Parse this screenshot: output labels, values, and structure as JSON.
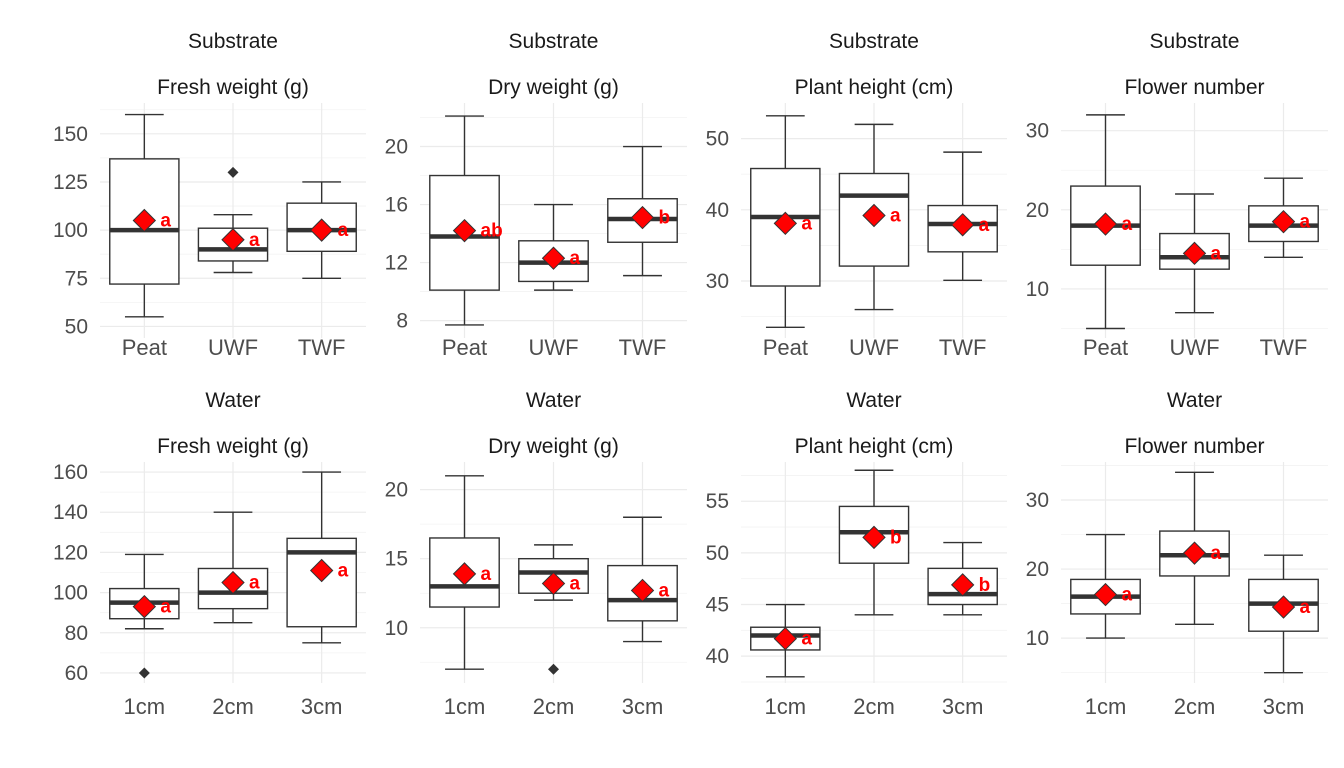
{
  "chart_data": [
    {
      "type": "box",
      "group": "Substrate",
      "title": "Fresh weight (g)",
      "categories": [
        "Peat",
        "UWF",
        "TWF"
      ],
      "ylim": [
        44,
        166
      ],
      "yticks": [
        "50",
        "75",
        "100",
        "125",
        "150"
      ],
      "boxes": [
        {
          "min": 55,
          "q1": 72,
          "median": 100,
          "q3": 137,
          "max": 160,
          "mean": 105,
          "outliers": [],
          "letter": "a"
        },
        {
          "min": 78,
          "q1": 84,
          "median": 90,
          "q3": 101,
          "max": 108,
          "mean": 95,
          "outliers": [
            130
          ],
          "letter": "a"
        },
        {
          "min": 75,
          "q1": 89,
          "median": 100,
          "q3": 114,
          "max": 125,
          "mean": 100,
          "outliers": [],
          "letter": "a"
        }
      ]
    },
    {
      "type": "box",
      "group": "Substrate",
      "title": "Dry weight (g)",
      "categories": [
        "Peat",
        "UWF",
        "TWF"
      ],
      "ylim": [
        6.8,
        23
      ],
      "yticks": [
        "8",
        "12",
        "16",
        "20"
      ],
      "boxes": [
        {
          "min": 7.7,
          "q1": 10.1,
          "median": 13.8,
          "q3": 18,
          "max": 22.1,
          "mean": 14.2,
          "outliers": [],
          "letter": "ab"
        },
        {
          "min": 10.1,
          "q1": 10.7,
          "median": 12,
          "q3": 13.5,
          "max": 16,
          "mean": 12.3,
          "outliers": [],
          "letter": "a"
        },
        {
          "min": 11.1,
          "q1": 13.4,
          "median": 15,
          "q3": 16.4,
          "max": 20,
          "mean": 15.1,
          "outliers": [],
          "letter": "b"
        }
      ]
    },
    {
      "type": "box",
      "group": "Substrate",
      "title": "Plant height (cm)",
      "categories": [
        "Peat",
        "UWF",
        "TWF"
      ],
      "ylim": [
        22,
        55
      ],
      "yticks": [
        "30",
        "40",
        "50"
      ],
      "boxes": [
        {
          "min": 23.5,
          "q1": 29.3,
          "median": 39,
          "q3": 45.8,
          "max": 53.2,
          "mean": 38.1,
          "outliers": [],
          "letter": "a"
        },
        {
          "min": 26,
          "q1": 32.1,
          "median": 42,
          "q3": 45.1,
          "max": 52,
          "mean": 39.2,
          "outliers": [],
          "letter": "a"
        },
        {
          "min": 30.1,
          "q1": 34.1,
          "median": 38,
          "q3": 40.6,
          "max": 48.1,
          "mean": 37.9,
          "outliers": [],
          "letter": "a"
        }
      ]
    },
    {
      "type": "box",
      "group": "Substrate",
      "title": "Flower number",
      "categories": [
        "Peat",
        "UWF",
        "TWF"
      ],
      "ylim": [
        3.8,
        33.5
      ],
      "yticks": [
        "10",
        "20",
        "30"
      ],
      "boxes": [
        {
          "min": 5,
          "q1": 13,
          "median": 18,
          "q3": 23,
          "max": 32,
          "mean": 18.2,
          "outliers": [],
          "letter": "a"
        },
        {
          "min": 7,
          "q1": 12.5,
          "median": 14,
          "q3": 17,
          "max": 22,
          "mean": 14.5,
          "outliers": [],
          "letter": "a"
        },
        {
          "min": 14,
          "q1": 16,
          "median": 18,
          "q3": 20.5,
          "max": 24,
          "mean": 18.5,
          "outliers": [],
          "letter": "a"
        }
      ]
    },
    {
      "type": "box",
      "group": "Water",
      "title": "Fresh weight (g)",
      "categories": [
        "1cm",
        "2cm",
        "3cm"
      ],
      "ylim": [
        55,
        165
      ],
      "yticks": [
        "60",
        "80",
        "100",
        "120",
        "140",
        "160"
      ],
      "boxes": [
        {
          "min": 82,
          "q1": 87,
          "median": 95,
          "q3": 102,
          "max": 119,
          "mean": 93,
          "outliers": [
            60
          ],
          "letter": "a"
        },
        {
          "min": 85,
          "q1": 92,
          "median": 100,
          "q3": 112,
          "max": 140,
          "mean": 105,
          "outliers": [],
          "letter": "a"
        },
        {
          "min": 75,
          "q1": 83,
          "median": 120,
          "q3": 127,
          "max": 160,
          "mean": 111,
          "outliers": [],
          "letter": "a"
        }
      ]
    },
    {
      "type": "box",
      "group": "Water",
      "title": "Dry weight (g)",
      "categories": [
        "1cm",
        "2cm",
        "3cm"
      ],
      "ylim": [
        6,
        22
      ],
      "yticks": [
        "10",
        "15",
        "20"
      ],
      "boxes": [
        {
          "min": 7,
          "q1": 11.5,
          "median": 13,
          "q3": 16.5,
          "max": 21,
          "mean": 13.9,
          "outliers": [],
          "letter": "a"
        },
        {
          "min": 12,
          "q1": 12.5,
          "median": 14,
          "q3": 15,
          "max": 16,
          "mean": 13.2,
          "outliers": [
            7
          ],
          "letter": "a"
        },
        {
          "min": 9,
          "q1": 10.5,
          "median": 12,
          "q3": 14.5,
          "max": 18,
          "mean": 12.7,
          "outliers": [],
          "letter": "a"
        }
      ]
    },
    {
      "type": "box",
      "group": "Water",
      "title": "Plant height (cm)",
      "categories": [
        "1cm",
        "2cm",
        "3cm"
      ],
      "ylim": [
        37.4,
        58.8
      ],
      "yticks": [
        "40",
        "45",
        "50",
        "55"
      ],
      "boxes": [
        {
          "min": 38,
          "q1": 40.6,
          "median": 42,
          "q3": 42.8,
          "max": 45,
          "mean": 41.7,
          "outliers": [],
          "letter": "a"
        },
        {
          "min": 44,
          "q1": 49,
          "median": 52,
          "q3": 54.5,
          "max": 58,
          "mean": 51.5,
          "outliers": [],
          "letter": "b"
        },
        {
          "min": 44,
          "q1": 45,
          "median": 46,
          "q3": 48.5,
          "max": 51,
          "mean": 46.9,
          "outliers": [],
          "letter": "b"
        }
      ]
    },
    {
      "type": "box",
      "group": "Water",
      "title": "Flower number",
      "categories": [
        "1cm",
        "2cm",
        "3cm"
      ],
      "ylim": [
        3.5,
        35.5
      ],
      "yticks": [
        "10",
        "20",
        "30"
      ],
      "boxes": [
        {
          "min": 10,
          "q1": 13.5,
          "median": 16,
          "q3": 18.5,
          "max": 25,
          "mean": 16.3,
          "outliers": [],
          "letter": "a"
        },
        {
          "min": 12,
          "q1": 19,
          "median": 22,
          "q3": 25.5,
          "max": 34,
          "mean": 22.3,
          "outliers": [],
          "letter": "a"
        },
        {
          "min": 5,
          "q1": 11,
          "median": 15,
          "q3": 18.5,
          "max": 22,
          "mean": 14.5,
          "outliers": [],
          "letter": "a"
        }
      ]
    }
  ]
}
